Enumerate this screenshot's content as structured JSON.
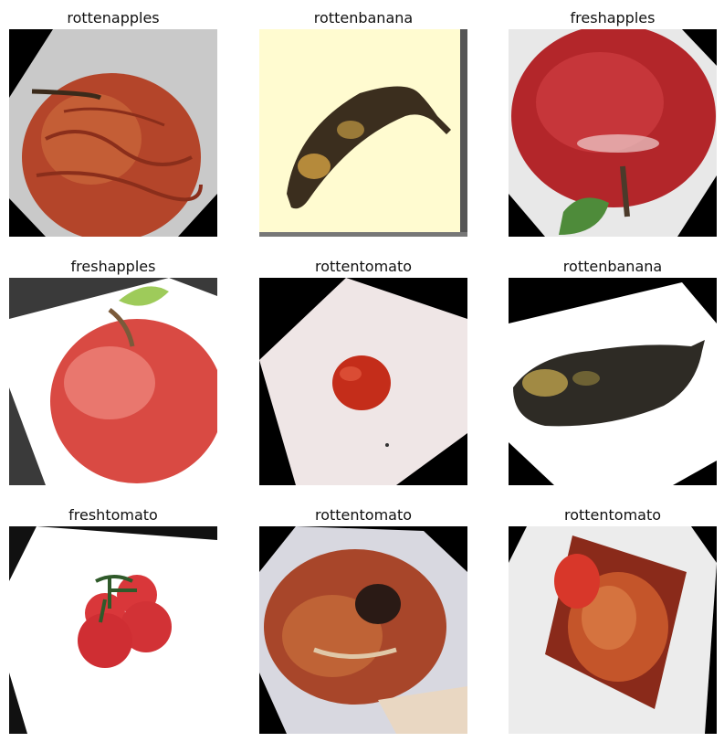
{
  "grid": {
    "cells": [
      {
        "label": "rottenapples"
      },
      {
        "label": "rottenbanana"
      },
      {
        "label": "freshapples"
      },
      {
        "label": "freshapples"
      },
      {
        "label": "rottentomato"
      },
      {
        "label": "rottenbanana"
      },
      {
        "label": "freshtomato"
      },
      {
        "label": "rottentomato"
      },
      {
        "label": "rottentomato"
      }
    ]
  }
}
